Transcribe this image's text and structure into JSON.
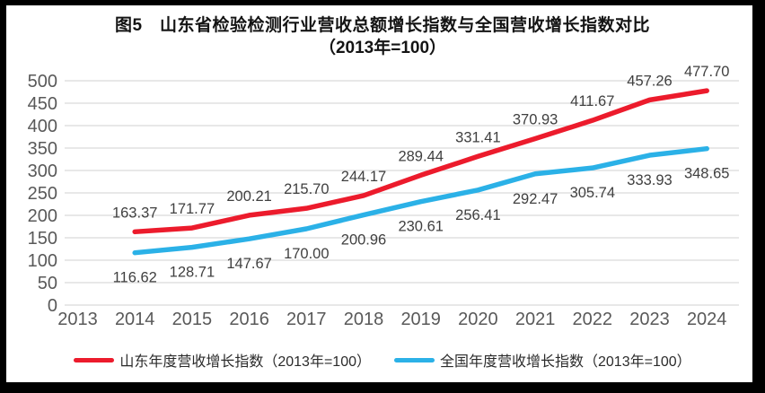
{
  "title": {
    "line1": "图5　山东省检验检测行业营收总额增长指数与全国营收增长指数对比",
    "line2": "（2013年=100）"
  },
  "colors": {
    "shandong_red": "#ec1b2c",
    "national_blue": "#2bb1e7",
    "grid": "#d9d9d9",
    "axis_text": "#595959",
    "data_label": "#404040",
    "title_text": "#141414",
    "frame": "#000000",
    "panel_bg": "#ffffff"
  },
  "chart_data": {
    "type": "line",
    "title": "图5　山东省检验检测行业营收总额增长指数与全国营收增长指数对比",
    "subtitle": "（2013年=100）",
    "categories": [
      2013,
      2014,
      2015,
      2016,
      2017,
      2018,
      2019,
      2020,
      2021,
      2022,
      2023,
      2024
    ],
    "ylim": [
      0,
      500
    ],
    "ytick_step": 50,
    "grid": true,
    "legend_position": "bottom",
    "series": [
      {
        "id": "shandong",
        "name": "山东年度营收增长指数（2013年=100）",
        "color": "#ec1b2c",
        "label_position": "above",
        "values": [
          null,
          163.37,
          171.77,
          200.21,
          215.7,
          244.17,
          289.44,
          331.41,
          370.93,
          411.67,
          457.26,
          477.7
        ]
      },
      {
        "id": "national",
        "name": "全国年度营收增长指数（2013年=100）",
        "color": "#2bb1e7",
        "label_position": "below",
        "values": [
          null,
          116.62,
          128.71,
          147.67,
          170.0,
          200.96,
          230.61,
          256.41,
          292.47,
          305.74,
          333.93,
          348.65
        ]
      }
    ]
  }
}
